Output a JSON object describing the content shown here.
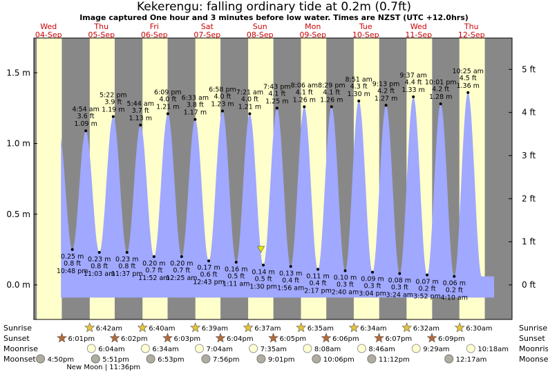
{
  "title": "Kekerengu: falling  ordinary tide at 0.2m (0.7ft)",
  "subtitle": "Image captured One hour and 3 minutes before low water. Times are NZST (UTC +12.0hrs)",
  "colors": {
    "day": "#ffffcc",
    "night": "#888888",
    "tide": "#a0a8ff",
    "header_text": "#cc0000",
    "marker": "#e6e600"
  },
  "chart_data": {
    "type": "area",
    "title": "Kekerengu: falling  ordinary tide at 0.2m (0.7ft)",
    "ylabel_left_unit": "m",
    "ylabel_right_unit": "ft",
    "ylim_m": [
      -0.25,
      1.72
    ],
    "yticks_left": [
      "0.0 m",
      "0.5 m",
      "1.0 m",
      "1.5 m"
    ],
    "yticks_left_values": [
      0,
      0.5,
      1.0,
      1.5
    ],
    "yticks_right": [
      "0 ft",
      "1 ft",
      "2 ft",
      "3 ft",
      "4 ft",
      "5 ft"
    ],
    "yticks_right_values": [
      0,
      1,
      2,
      3,
      4,
      5
    ],
    "days": [
      {
        "name": "Wed",
        "date": "04-Sep"
      },
      {
        "name": "Thu",
        "date": "05-Sep"
      },
      {
        "name": "Fri",
        "date": "06-Sep"
      },
      {
        "name": "Sat",
        "date": "07-Sep"
      },
      {
        "name": "Sun",
        "date": "08-Sep"
      },
      {
        "name": "Mon",
        "date": "09-Sep"
      },
      {
        "name": "Tue",
        "date": "10-Sep"
      },
      {
        "name": "Wed",
        "date": "11-Sep"
      },
      {
        "name": "Thu",
        "date": "12-Sep"
      }
    ],
    "high_tides": [
      {
        "day": 1,
        "time": "4:54 am",
        "ft": "3.6 ft",
        "m": "1.09 m",
        "value": 1.09
      },
      {
        "day": 1,
        "time": "5:22 pm",
        "ft": "3.9 ft",
        "m": "1.19 m",
        "value": 1.19
      },
      {
        "day": 2,
        "time": "5:44 am",
        "ft": "3.7 ft",
        "m": "1.13 m",
        "value": 1.13
      },
      {
        "day": 2,
        "time": "6:09 pm",
        "ft": "4.0 ft",
        "m": "1.21 m",
        "value": 1.21
      },
      {
        "day": 3,
        "time": "6:33 am",
        "ft": "3.8 ft",
        "m": "1.17 m",
        "value": 1.17
      },
      {
        "day": 3,
        "time": "6:58 pm",
        "ft": "4.0 ft",
        "m": "1.23 m",
        "value": 1.23
      },
      {
        "day": 4,
        "time": "7:21 am",
        "ft": "4.0 ft",
        "m": "1.21 m",
        "value": 1.21
      },
      {
        "day": 4,
        "time": "7:43 pm",
        "ft": "4.1 ft",
        "m": "1.25 m",
        "value": 1.25
      },
      {
        "day": 5,
        "time": "8:06 am",
        "ft": "4.1 ft",
        "m": "1.26 m",
        "value": 1.26
      },
      {
        "day": 5,
        "time": "8:29 pm",
        "ft": "4.1 ft",
        "m": "1.26 m",
        "value": 1.26
      },
      {
        "day": 6,
        "time": "8:51 am",
        "ft": "4.3 ft",
        "m": "1.30 m",
        "value": 1.3
      },
      {
        "day": 6,
        "time": "9:13 pm",
        "ft": "4.2 ft",
        "m": "1.27 m",
        "value": 1.27
      },
      {
        "day": 7,
        "time": "9:37 am",
        "ft": "4.4 ft",
        "m": "1.33 m",
        "value": 1.33
      },
      {
        "day": 7,
        "time": "10:01 pm",
        "ft": "4.2 ft",
        "m": "1.28 m",
        "value": 1.28
      },
      {
        "day": 8,
        "time": "10:25 am",
        "ft": "4.5 ft",
        "m": "1.36 m",
        "value": 1.36
      }
    ],
    "low_tides": [
      {
        "day": 0,
        "time": "10:48 pm",
        "ft": "0.8 ft",
        "m": "0.25 m",
        "value": 0.25
      },
      {
        "day": 1,
        "time": "11:03 am",
        "ft": "0.8 ft",
        "m": "0.23 m",
        "value": 0.23
      },
      {
        "day": 1,
        "time": "11:37 pm",
        "ft": "0.8 ft",
        "m": "0.23 m",
        "value": 0.23
      },
      {
        "day": 2,
        "time": "11:52 am",
        "ft": "0.7 ft",
        "m": "0.20 m",
        "value": 0.2
      },
      {
        "day": 3,
        "time": "12:25 am",
        "ft": "0.7 ft",
        "m": "0.20 m",
        "value": 0.2
      },
      {
        "day": 3,
        "time": "12:43 pm",
        "ft": "0.6 ft",
        "m": "0.17 m",
        "value": 0.17
      },
      {
        "day": 4,
        "time": "1:11 am",
        "ft": "0.5 ft",
        "m": "0.16 m",
        "value": 0.16
      },
      {
        "day": 4,
        "time": "1:30 pm",
        "ft": "0.5 ft",
        "m": "0.14 m",
        "value": 0.14
      },
      {
        "day": 5,
        "time": "1:56 am",
        "ft": "0.4 ft",
        "m": "0.13 m",
        "value": 0.13
      },
      {
        "day": 5,
        "time": "2:17 pm",
        "ft": "0.4 ft",
        "m": "0.11 m",
        "value": 0.11
      },
      {
        "day": 6,
        "time": "2:40 am",
        "ft": "0.3 ft",
        "m": "0.10 m",
        "value": 0.1
      },
      {
        "day": 6,
        "time": "3:04 pm",
        "ft": "0.3 ft",
        "m": "0.09 m",
        "value": 0.09
      },
      {
        "day": 7,
        "time": "3:24 am",
        "ft": "0.3 ft",
        "m": "0.08 m",
        "value": 0.08
      },
      {
        "day": 7,
        "time": "3:52 pm",
        "ft": "0.2 ft",
        "m": "0.07 m",
        "value": 0.07
      },
      {
        "day": 8,
        "time": "4:10 am",
        "ft": "0.2 ft",
        "m": "0.06 m",
        "value": 0.06
      }
    ],
    "current": {
      "time": "12:27 pm",
      "day": 4,
      "value": 0.2
    }
  },
  "astro": {
    "row_labels": [
      "Sunrise",
      "Sunset",
      "Moonrise",
      "Moonset"
    ],
    "sunrise": [
      {
        "day": 1,
        "time": "6:42am"
      },
      {
        "day": 2,
        "time": "6:40am"
      },
      {
        "day": 3,
        "time": "6:39am"
      },
      {
        "day": 4,
        "time": "6:37am"
      },
      {
        "day": 5,
        "time": "6:35am"
      },
      {
        "day": 6,
        "time": "6:34am"
      },
      {
        "day": 7,
        "time": "6:32am"
      },
      {
        "day": 8,
        "time": "6:30am"
      }
    ],
    "sunset": [
      {
        "day": 0,
        "time": "6:01pm"
      },
      {
        "day": 1,
        "time": "6:02pm"
      },
      {
        "day": 2,
        "time": "6:03pm"
      },
      {
        "day": 3,
        "time": "6:04pm"
      },
      {
        "day": 4,
        "time": "6:05pm"
      },
      {
        "day": 5,
        "time": "6:06pm"
      },
      {
        "day": 6,
        "time": "6:07pm"
      },
      {
        "day": 7,
        "time": "6:09pm"
      }
    ],
    "moonrise": [
      {
        "day": 1,
        "time": "6:04am"
      },
      {
        "day": 2,
        "time": "6:34am"
      },
      {
        "day": 3,
        "time": "7:04am"
      },
      {
        "day": 4,
        "time": "7:35am"
      },
      {
        "day": 5,
        "time": "8:08am"
      },
      {
        "day": 6,
        "time": "8:46am"
      },
      {
        "day": 7,
        "time": "9:29am"
      },
      {
        "day": 8,
        "time": "10:18am"
      }
    ],
    "moonset": [
      {
        "day": 0,
        "time": "4:50pm"
      },
      {
        "day": 1,
        "time": "5:51pm"
      },
      {
        "day": 2,
        "time": "6:53pm"
      },
      {
        "day": 3,
        "time": "7:56pm"
      },
      {
        "day": 4,
        "time": "9:01pm"
      },
      {
        "day": 5,
        "time": "10:06pm"
      },
      {
        "day": 6,
        "time": "11:12pm"
      },
      {
        "day": 8,
        "time": "12:17am"
      }
    ],
    "new_moon": {
      "label": "New Moon | 11:36pm",
      "day": 1
    }
  }
}
